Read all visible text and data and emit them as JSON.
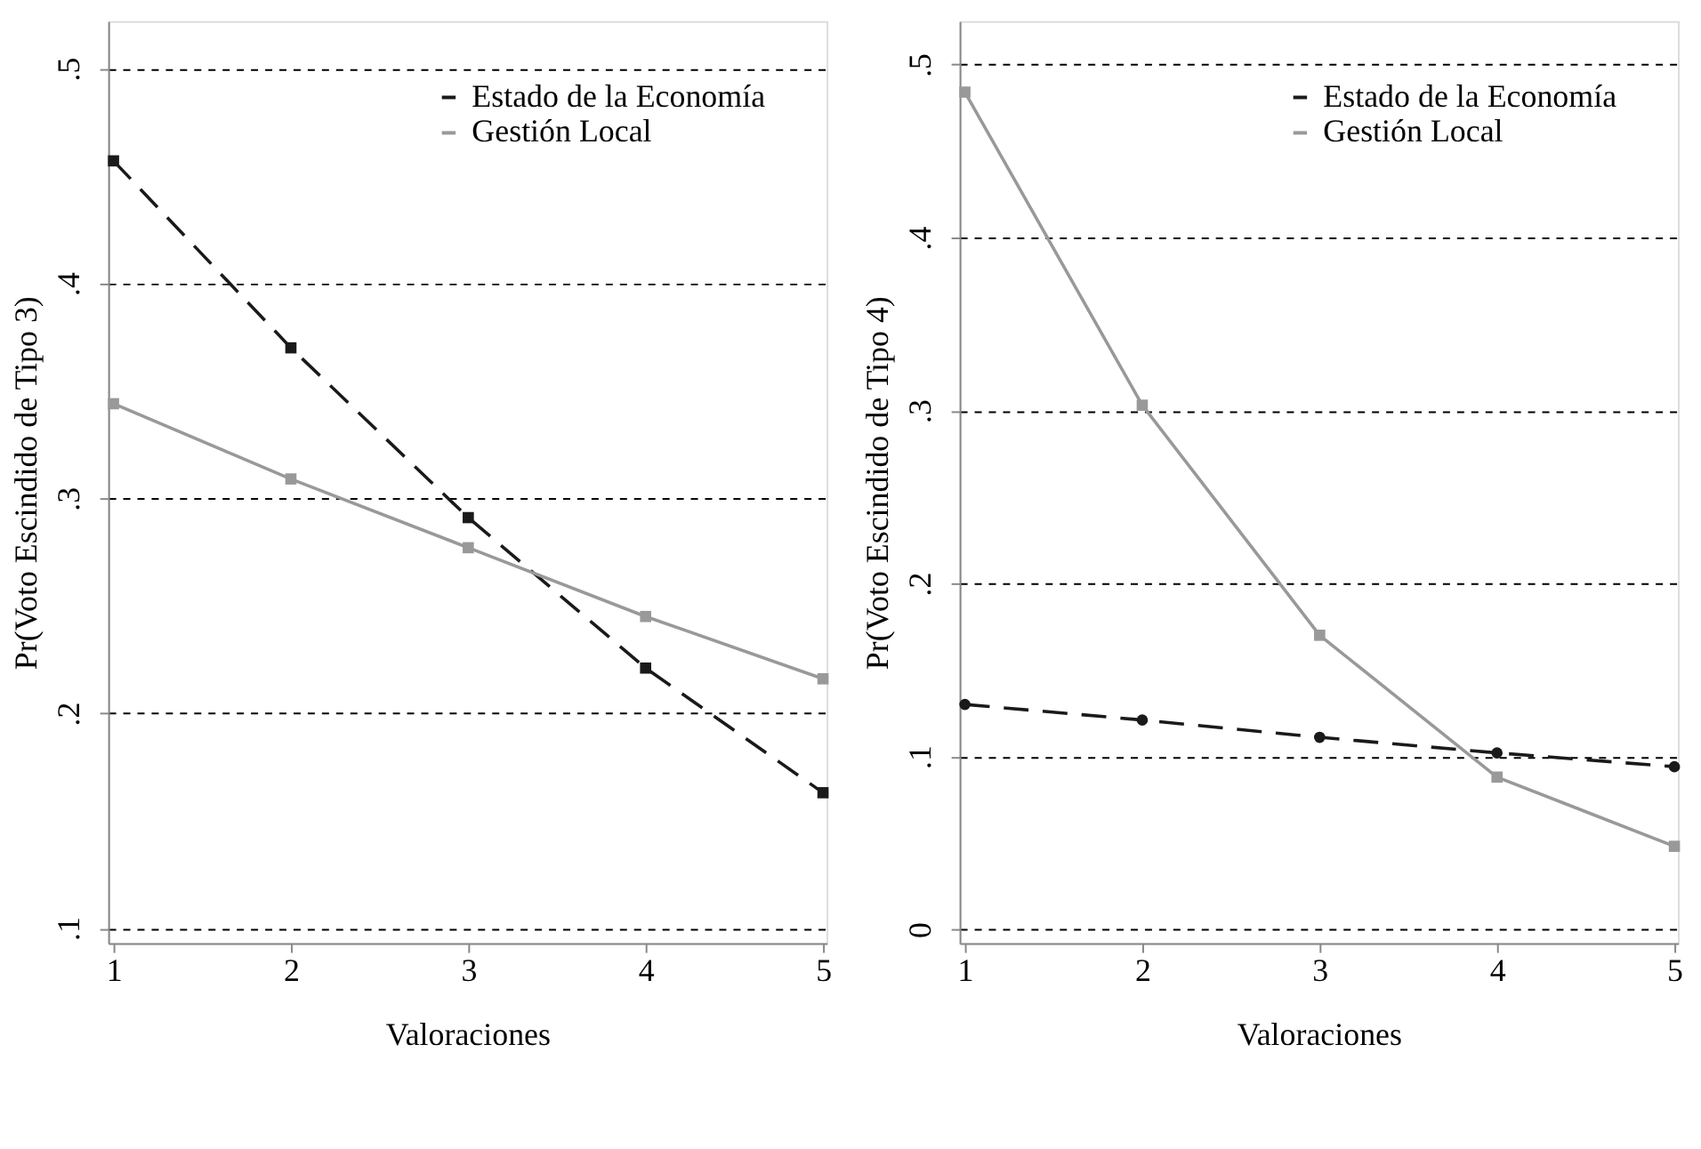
{
  "chart_data": [
    {
      "type": "line",
      "xlabel": "Valoraciones",
      "ylabel": "Pr(Voto Escindido de Tipo 3)",
      "x": [
        1,
        2,
        3,
        4,
        5
      ],
      "series": [
        {
          "name": "Estado de la Economía",
          "color": "#1a1a1a",
          "line_style": "dashed",
          "marker": "square",
          "values": [
            0.457,
            0.37,
            0.291,
            0.221,
            0.163
          ]
        },
        {
          "name": "Gestión Local",
          "color": "#999999",
          "line_style": "solid",
          "marker": "square",
          "values": [
            0.344,
            0.309,
            0.277,
            0.245,
            0.216
          ]
        }
      ],
      "xlim": [
        0.97,
        5.02
      ],
      "ylim": [
        0.093,
        0.522
      ],
      "xticks": [
        1,
        2,
        3,
        4,
        5
      ],
      "yticks": [
        {
          "value": 0.1,
          "label": ".1"
        },
        {
          "value": 0.2,
          "label": ".2"
        },
        {
          "value": 0.3,
          "label": ".3"
        },
        {
          "value": 0.4,
          "label": ".4"
        },
        {
          "value": 0.5,
          "label": ".5"
        }
      ],
      "grid": "y",
      "legend": "top right"
    },
    {
      "type": "line",
      "xlabel": "Valoraciones",
      "ylabel": "Pr(Voto Escindido de Tipo 4)",
      "x": [
        1,
        2,
        3,
        4,
        5
      ],
      "series": [
        {
          "name": "Estado de la Economía",
          "color": "#1a1a1a",
          "line_style": "dashed",
          "marker": "circle",
          "values": [
            0.13,
            0.121,
            0.111,
            0.102,
            0.094
          ]
        },
        {
          "name": "Gestión Local",
          "color": "#999999",
          "line_style": "solid",
          "marker": "square",
          "values": [
            0.484,
            0.303,
            0.17,
            0.088,
            0.048
          ]
        }
      ],
      "xlim": [
        0.97,
        5.02
      ],
      "ylim": [
        -0.008,
        0.525
      ],
      "xticks": [
        1,
        2,
        3,
        4,
        5
      ],
      "yticks": [
        0,
        {
          "value": 0.1,
          "label": ".1"
        },
        {
          "value": 0.2,
          "label": ".2"
        },
        {
          "value": 0.3,
          "label": ".3"
        },
        {
          "value": 0.4,
          "label": ".4"
        },
        {
          "value": 0.5,
          "label": ".5"
        }
      ],
      "grid": "y",
      "legend": "top right"
    }
  ]
}
